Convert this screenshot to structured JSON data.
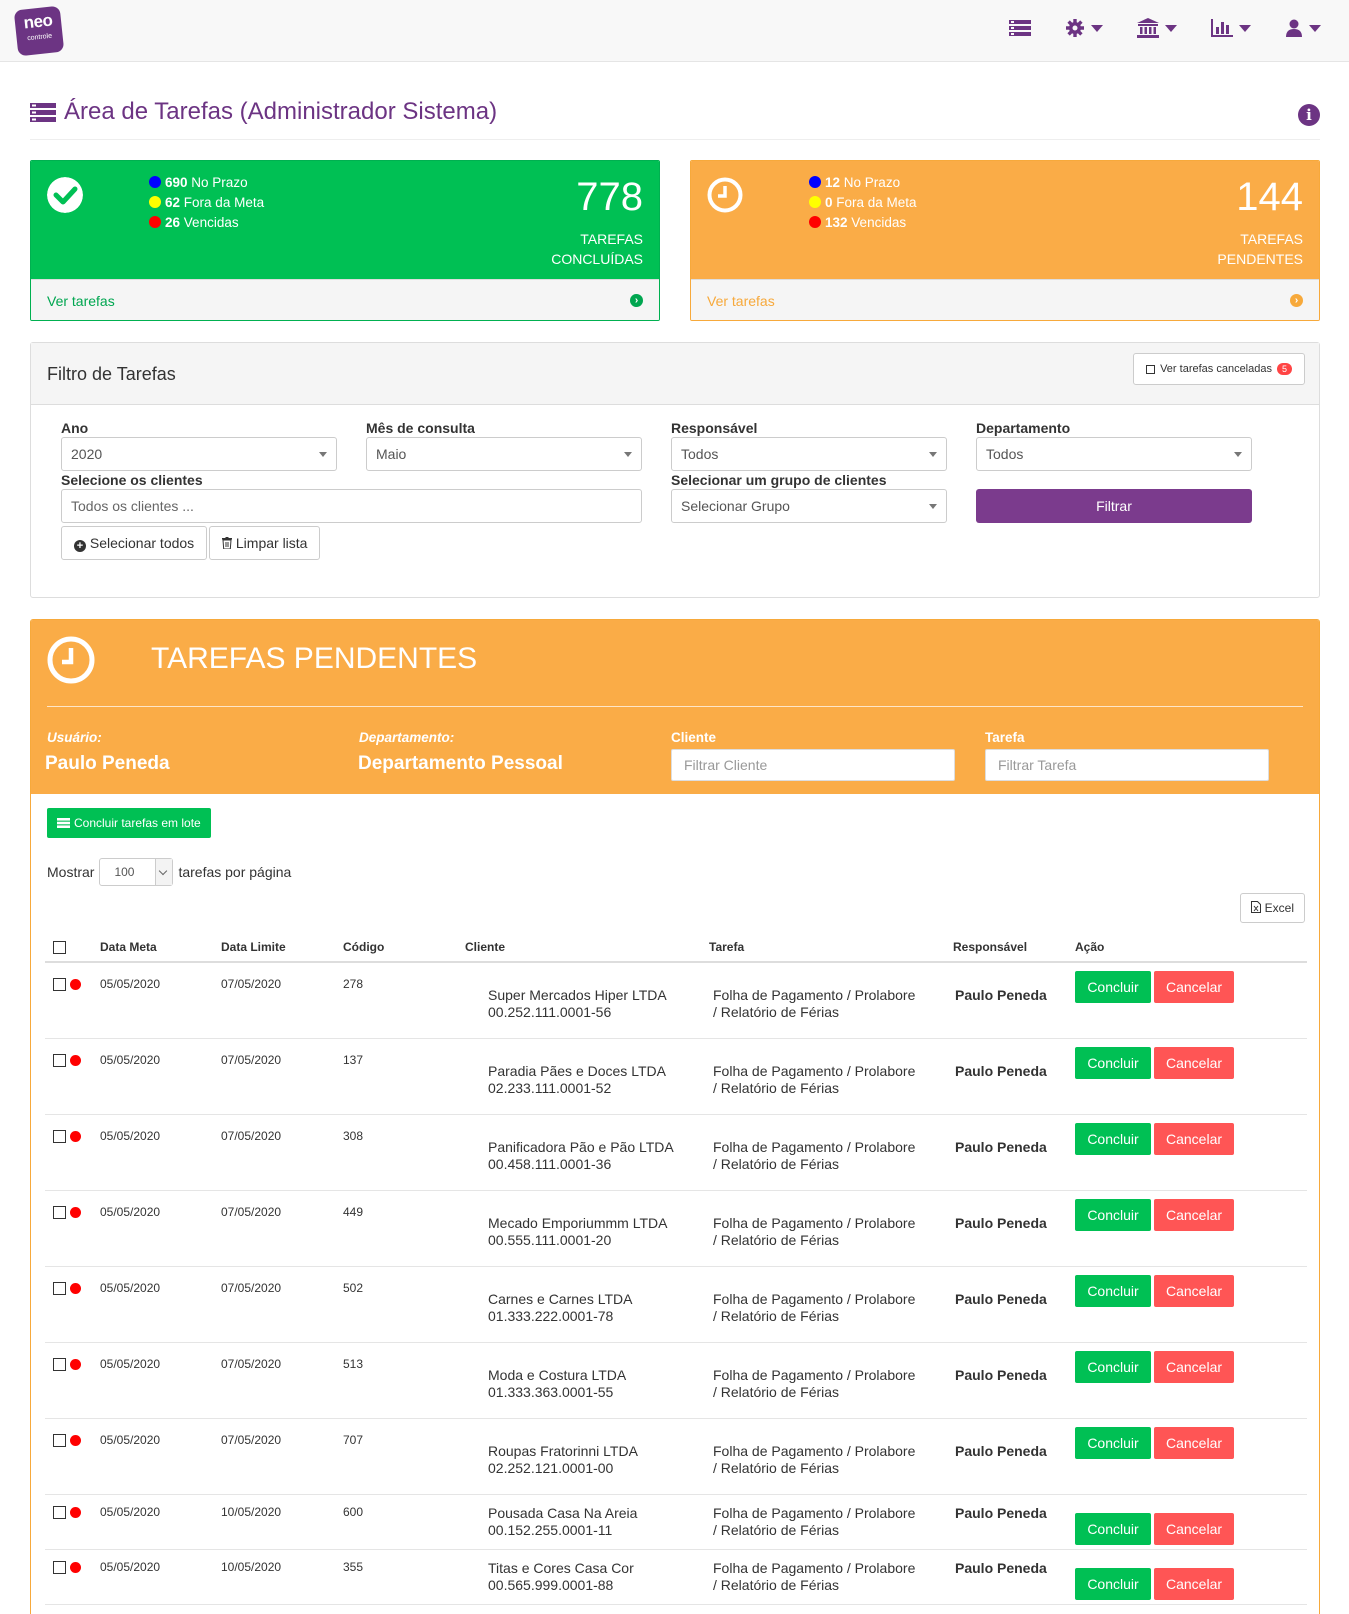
{
  "nav": {
    "logo_line1": "neo",
    "logo_line2": "controle",
    "icons": [
      "list-icon",
      "gear-icon",
      "bank-icon",
      "chart-icon",
      "user-icon"
    ]
  },
  "page": {
    "title": "Área de Tarefas (Administrador Sistema)"
  },
  "cards": {
    "done": {
      "legend": [
        {
          "value": "690",
          "label": "No Prazo",
          "color": "#0000ff"
        },
        {
          "value": "62",
          "label": "Fora da Meta",
          "color": "#ffff00"
        },
        {
          "value": "26",
          "label": "Vencidas",
          "color": "#ff0000"
        }
      ],
      "count": "778",
      "label1": "TAREFAS",
      "label2": "CONCLUÍDAS",
      "link": "Ver tarefas"
    },
    "pending": {
      "legend": [
        {
          "value": "12",
          "label": "No Prazo",
          "color": "#0000ff"
        },
        {
          "value": "0",
          "label": "Fora da Meta",
          "color": "#ffff00"
        },
        {
          "value": "132",
          "label": "Vencidas",
          "color": "#ff0000"
        }
      ],
      "count": "144",
      "label1": "TAREFAS",
      "label2": "PENDENTES",
      "link": "Ver tarefas"
    }
  },
  "filter": {
    "title": "Filtro de Tarefas",
    "canceled_label": "Ver tarefas canceladas",
    "canceled_count": "5",
    "ano_label": "Ano",
    "ano_value": "2020",
    "mes_label": "Mês de consulta",
    "mes_value": "Maio",
    "resp_label": "Responsável",
    "resp_value": "Todos",
    "dep_label": "Departamento",
    "dep_value": "Todos",
    "clientes_label": "Selecione os clientes",
    "clientes_placeholder": "Todos os clientes ...",
    "grupo_label": "Selecionar um grupo de clientes",
    "grupo_value": "Selecionar Grupo",
    "filter_button": "Filtrar",
    "select_all": "Selecionar todos",
    "clear_list": "Limpar lista"
  },
  "pending": {
    "title": "TAREFAS PENDENTES",
    "user_label": "Usuário:",
    "user_value": "Paulo Peneda",
    "dep_label": "Departamento:",
    "dep_value": "Departamento Pessoal",
    "client_label": "Cliente",
    "client_placeholder": "Filtrar Cliente",
    "task_label": "Tarefa",
    "task_placeholder": "Filtrar Tarefa",
    "batch_button": "Concluir tarefas em lote",
    "show_label": "Mostrar",
    "show_value": "100",
    "per_page_label": "tarefas por página",
    "excel_button": "Excel",
    "columns": [
      "Data Meta",
      "Data Limite",
      "Código",
      "Cliente",
      "Tarefa",
      "Responsável",
      "Ação"
    ],
    "conclude_label": "Concluir",
    "cancel_label": "Cancelar",
    "rows": [
      {
        "meta": "05/05/2020",
        "limite": "07/05/2020",
        "codigo": "278",
        "cliente": "Super Mercados Hiper LTDA",
        "cnpj": "00.252.111.0001-56",
        "tarefa1": "Folha de Pagamento / Prolabore",
        "tarefa2": "/ Relatório de Férias",
        "resp": "Paulo Peneda"
      },
      {
        "meta": "05/05/2020",
        "limite": "07/05/2020",
        "codigo": "137",
        "cliente": "Paradia Pães e Doces LTDA",
        "cnpj": "02.233.111.0001-52",
        "tarefa1": "Folha de Pagamento / Prolabore",
        "tarefa2": "/ Relatório de Férias",
        "resp": "Paulo Peneda"
      },
      {
        "meta": "05/05/2020",
        "limite": "07/05/2020",
        "codigo": "308",
        "cliente": "Panificadora Pão e Pão LTDA",
        "cnpj": "00.458.111.0001-36",
        "tarefa1": "Folha de Pagamento / Prolabore",
        "tarefa2": "/ Relatório de Férias",
        "resp": "Paulo Peneda"
      },
      {
        "meta": "05/05/2020",
        "limite": "07/05/2020",
        "codigo": "449",
        "cliente": "Mecado Emporiummm  LTDA",
        "cnpj": "00.555.111.0001-20",
        "tarefa1": "Folha de Pagamento / Prolabore",
        "tarefa2": "/ Relatório de Férias",
        "resp": "Paulo Peneda"
      },
      {
        "meta": "05/05/2020",
        "limite": "07/05/2020",
        "codigo": "502",
        "cliente": "Carnes e Carnes  LTDA",
        "cnpj": "01.333.222.0001-78",
        "tarefa1": "Folha de Pagamento / Prolabore",
        "tarefa2": "/ Relatório de Férias",
        "resp": "Paulo Peneda"
      },
      {
        "meta": "05/05/2020",
        "limite": "07/05/2020",
        "codigo": "513",
        "cliente": "Moda e Costura  LTDA",
        "cnpj": "01.333.363.0001-55",
        "tarefa1": "Folha de Pagamento / Prolabore",
        "tarefa2": "/ Relatório de Férias",
        "resp": "Paulo Peneda"
      },
      {
        "meta": "05/05/2020",
        "limite": "07/05/2020",
        "codigo": "707",
        "cliente": "Roupas Fratorinni  LTDA",
        "cnpj": "02.252.121.0001-00",
        "tarefa1": "Folha de Pagamento / Prolabore",
        "tarefa2": "/ Relatório de Férias",
        "resp": "Paulo Peneda"
      },
      {
        "meta": "05/05/2020",
        "limite": "10/05/2020",
        "codigo": "600",
        "cliente": "Pousada Casa Na Areia",
        "cnpj": "00.152.255.0001-11",
        "tarefa1": "Folha de Pagamento / Prolabore",
        "tarefa2": "/ Relatório de Férias",
        "resp": "Paulo Peneda"
      },
      {
        "meta": "05/05/2020",
        "limite": "10/05/2020",
        "codigo": "355",
        "cliente": "Titas e Cores Casa Cor",
        "cnpj": "00.565.999.0001-88",
        "tarefa1": "Folha de Pagamento / Prolabore",
        "tarefa2": "/ Relatório de Férias",
        "resp": "Paulo Peneda"
      }
    ]
  }
}
